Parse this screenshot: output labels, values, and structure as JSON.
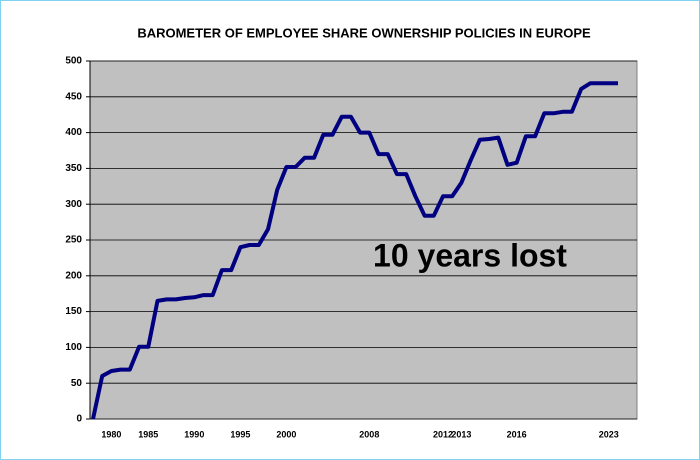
{
  "chart_data": {
    "type": "line",
    "title": "BAROMETER OF EMPLOYEE SHARE OWNERSHIP POLICIES IN EUROPE",
    "annotation": "10 years lost",
    "categories": [
      null,
      null,
      "1980",
      null,
      null,
      null,
      "1985",
      null,
      null,
      null,
      null,
      "1990",
      null,
      null,
      null,
      null,
      "1995",
      null,
      null,
      null,
      null,
      "2000",
      null,
      null,
      null,
      null,
      null,
      null,
      null,
      null,
      "2008",
      null,
      null,
      null,
      null,
      null,
      null,
      null,
      "2012",
      null,
      "2013",
      null,
      null,
      null,
      null,
      null,
      "2016",
      null,
      null,
      null,
      null,
      null,
      null,
      null,
      null,
      null,
      "2023",
      null
    ],
    "series": [
      {
        "name": "Barometer",
        "color": "#000080",
        "values": [
          0,
          60,
          67,
          69,
          69,
          101,
          101,
          165,
          167,
          167,
          169,
          170,
          173,
          173,
          208,
          208,
          240,
          243,
          243,
          265,
          320,
          352,
          352,
          365,
          365,
          397,
          397,
          422,
          422,
          400,
          400,
          370,
          370,
          342,
          342,
          311,
          284,
          284,
          311,
          311,
          330,
          361,
          390,
          391,
          393,
          355,
          358,
          395,
          395,
          427,
          427,
          429,
          429,
          461,
          469,
          469,
          469,
          469
        ]
      }
    ],
    "ylim": [
      0,
      500
    ],
    "yticks": [
      0,
      50,
      100,
      150,
      200,
      250,
      300,
      350,
      400,
      450,
      500
    ],
    "grid": true,
    "plot_background": "#c0c0c0",
    "annotation_color": "#ff0000"
  }
}
